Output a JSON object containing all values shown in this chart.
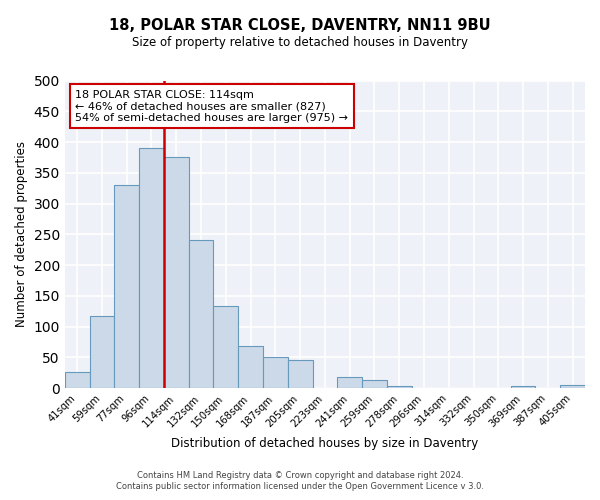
{
  "title": "18, POLAR STAR CLOSE, DAVENTRY, NN11 9BU",
  "subtitle": "Size of property relative to detached houses in Daventry",
  "xlabel": "Distribution of detached houses by size in Daventry",
  "ylabel": "Number of detached properties",
  "bar_color": "#ccd9e8",
  "bar_edge_color": "#6699bb",
  "categories": [
    "41sqm",
    "59sqm",
    "77sqm",
    "96sqm",
    "114sqm",
    "132sqm",
    "150sqm",
    "168sqm",
    "187sqm",
    "205sqm",
    "223sqm",
    "241sqm",
    "259sqm",
    "278sqm",
    "296sqm",
    "314sqm",
    "332sqm",
    "350sqm",
    "369sqm",
    "387sqm",
    "405sqm"
  ],
  "values": [
    27,
    117,
    330,
    390,
    375,
    240,
    133,
    68,
    50,
    45,
    0,
    18,
    13,
    4,
    0,
    0,
    0,
    0,
    3,
    0,
    5
  ],
  "ylim": [
    0,
    500
  ],
  "yticks": [
    0,
    50,
    100,
    150,
    200,
    250,
    300,
    350,
    400,
    450,
    500
  ],
  "vline_color": "#cc0000",
  "vline_index": 4,
  "annotation_title": "18 POLAR STAR CLOSE: 114sqm",
  "annotation_line1": "← 46% of detached houses are smaller (827)",
  "annotation_line2": "54% of semi-detached houses are larger (975) →",
  "footer1": "Contains HM Land Registry data © Crown copyright and database right 2024.",
  "footer2": "Contains public sector information licensed under the Open Government Licence v 3.0.",
  "bg_color": "#eef2f8",
  "grid_color": "#d0d8e8"
}
